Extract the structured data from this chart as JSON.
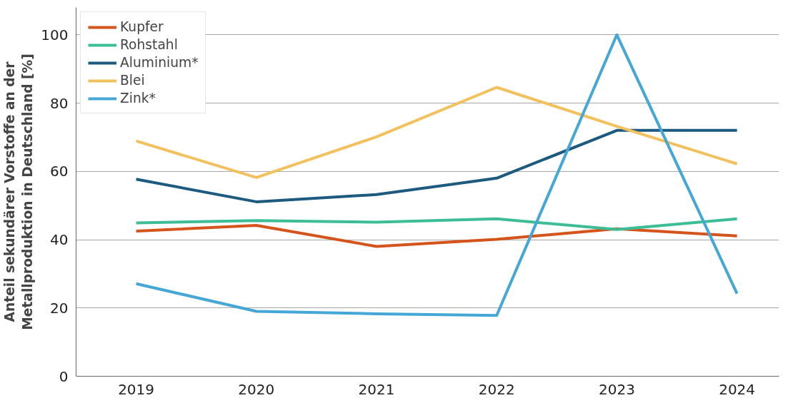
{
  "chart_data": {
    "type": "line",
    "ylabel": "Anteil sekundärer Vorstoffe an der\nMetallproduktion in Deutschland [%]",
    "x": [
      2019,
      2020,
      2021,
      2022,
      2023,
      2024
    ],
    "xlim": [
      2018.5,
      2024.35
    ],
    "xticks": [
      2019,
      2020,
      2021,
      2022,
      2023,
      2024
    ],
    "ylim": [
      0,
      108
    ],
    "yticks": [
      0,
      20,
      40,
      60,
      80,
      100
    ],
    "grid": "y",
    "legend": "top left",
    "marker": "none",
    "line_style": "solid",
    "series": [
      {
        "name": "Kupfer",
        "color": "#d4541c",
        "values": [
          42.5,
          44.2,
          38.0,
          40.1,
          43.2,
          41.1
        ]
      },
      {
        "name": "Rohstahl",
        "color": "#3dbd96",
        "values": [
          44.9,
          45.6,
          45.1,
          46.1,
          43.0,
          46.1
        ]
      },
      {
        "name": "Aluminium*",
        "color": "#1d5a80",
        "values": [
          57.7,
          51.1,
          53.2,
          58.0,
          72.0,
          72.0
        ]
      },
      {
        "name": "Blei",
        "color": "#f2c05c",
        "values": [
          68.9,
          58.2,
          70.1,
          84.6,
          73.2,
          62.2
        ]
      },
      {
        "name": "Zink*",
        "color": "#44a7d6",
        "values": [
          27.1,
          19.0,
          18.3,
          17.8,
          100,
          24.2
        ]
      }
    ]
  }
}
